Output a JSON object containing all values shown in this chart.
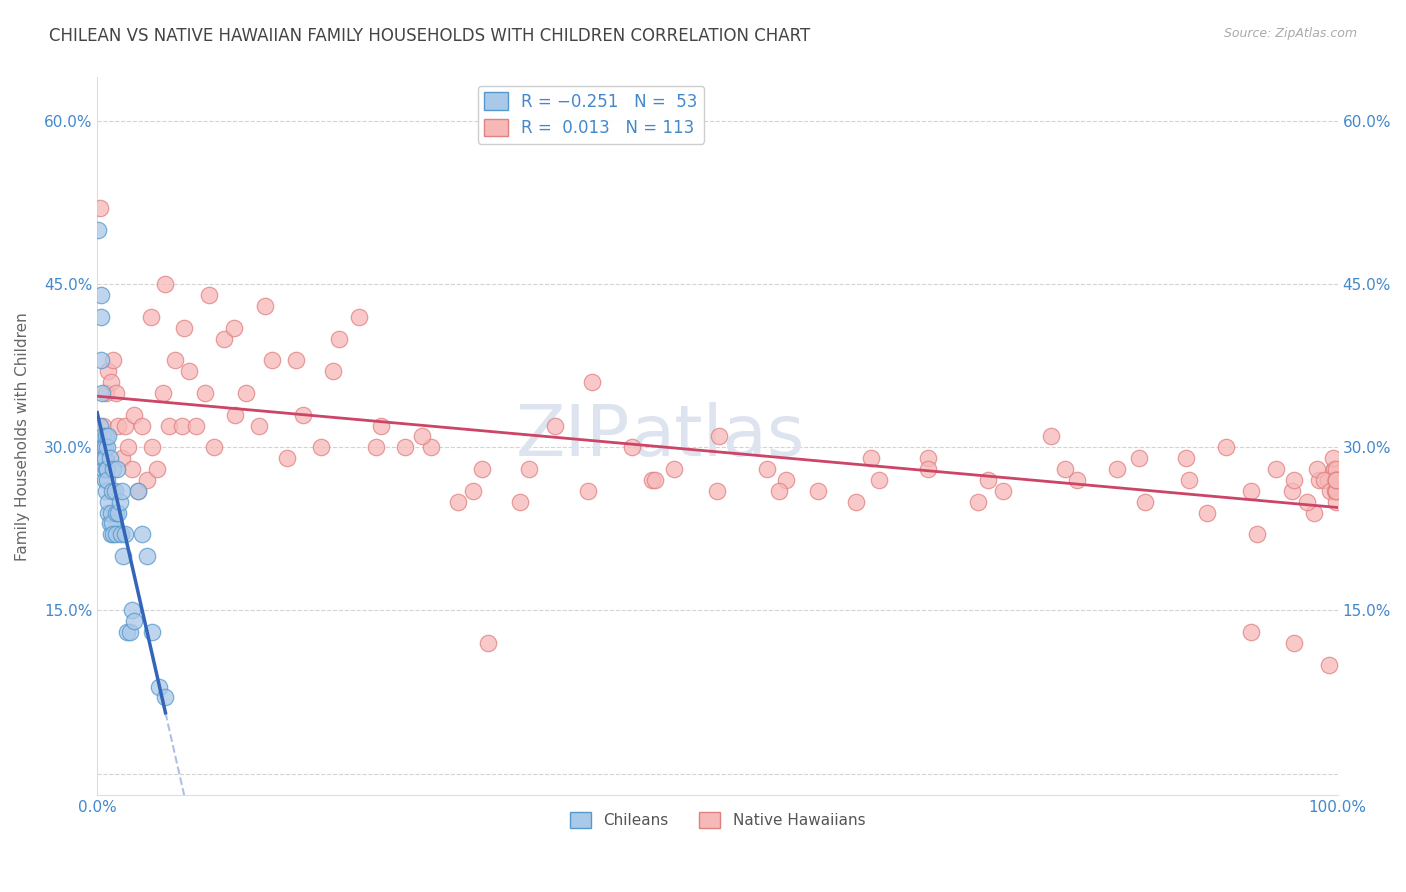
{
  "title": "CHILEAN VS NATIVE HAWAIIAN FAMILY HOUSEHOLDS WITH CHILDREN CORRELATION CHART",
  "source": "Source: ZipAtlas.com",
  "ylabel": "Family Households with Children",
  "xlim": [
    0.0,
    1.0
  ],
  "ylim": [
    -0.02,
    0.64
  ],
  "xticks": [
    0.0,
    0.1,
    0.2,
    0.3,
    0.4,
    0.5,
    0.6,
    0.7,
    0.8,
    0.9,
    1.0
  ],
  "yticks": [
    0.0,
    0.15,
    0.3,
    0.45,
    0.6
  ],
  "chilean_face": "#aac8e8",
  "chilean_edge": "#5599cc",
  "hawaiian_face": "#f7b8b8",
  "hawaiian_edge": "#e08080",
  "trend_chilean_color": "#3366bb",
  "trend_hawaiian_color": "#cc4466",
  "axis_label_color": "#4488cc",
  "grid_color": "#c8c8c8",
  "title_color": "#444444",
  "background_color": "#ffffff",
  "watermark_color": "#dde4f0",
  "chilean_R": -0.251,
  "chilean_N": 53,
  "hawaiian_R": 0.013,
  "hawaiian_N": 113,
  "chileans_x": [
    0.001,
    0.002,
    0.002,
    0.003,
    0.003,
    0.003,
    0.004,
    0.004,
    0.004,
    0.005,
    0.005,
    0.005,
    0.005,
    0.006,
    0.006,
    0.006,
    0.007,
    0.007,
    0.007,
    0.008,
    0.008,
    0.008,
    0.009,
    0.009,
    0.009,
    0.01,
    0.01,
    0.011,
    0.011,
    0.012,
    0.012,
    0.013,
    0.013,
    0.014,
    0.015,
    0.015,
    0.016,
    0.017,
    0.018,
    0.019,
    0.02,
    0.021,
    0.022,
    0.024,
    0.026,
    0.028,
    0.03,
    0.033,
    0.036,
    0.04,
    0.044,
    0.05,
    0.055
  ],
  "chileans_y": [
    0.5,
    0.32,
    0.3,
    0.42,
    0.38,
    0.44,
    0.35,
    0.3,
    0.3,
    0.28,
    0.31,
    0.3,
    0.29,
    0.3,
    0.29,
    0.27,
    0.31,
    0.28,
    0.26,
    0.3,
    0.28,
    0.27,
    0.24,
    0.25,
    0.31,
    0.23,
    0.29,
    0.24,
    0.22,
    0.26,
    0.23,
    0.22,
    0.28,
    0.26,
    0.24,
    0.22,
    0.28,
    0.24,
    0.25,
    0.22,
    0.26,
    0.2,
    0.22,
    0.13,
    0.13,
    0.15,
    0.14,
    0.26,
    0.22,
    0.2,
    0.13,
    0.08,
    0.07
  ],
  "hawaiians_x": [
    0.002,
    0.005,
    0.007,
    0.009,
    0.011,
    0.013,
    0.015,
    0.017,
    0.02,
    0.022,
    0.025,
    0.028,
    0.03,
    0.033,
    0.036,
    0.04,
    0.044,
    0.048,
    0.053,
    0.058,
    0.063,
    0.068,
    0.074,
    0.08,
    0.087,
    0.094,
    0.102,
    0.111,
    0.12,
    0.13,
    0.141,
    0.153,
    0.166,
    0.18,
    0.195,
    0.211,
    0.229,
    0.248,
    0.269,
    0.291,
    0.315,
    0.341,
    0.369,
    0.399,
    0.431,
    0.465,
    0.501,
    0.54,
    0.581,
    0.624,
    0.67,
    0.718,
    0.769,
    0.822,
    0.878,
    0.93,
    0.965,
    0.985,
    0.993,
    0.997,
    0.043,
    0.055,
    0.07,
    0.09,
    0.11,
    0.135,
    0.16,
    0.19,
    0.225,
    0.262,
    0.303,
    0.348,
    0.396,
    0.447,
    0.5,
    0.555,
    0.612,
    0.67,
    0.73,
    0.79,
    0.845,
    0.895,
    0.935,
    0.963,
    0.981,
    0.992,
    0.997,
    0.31,
    0.45,
    0.55,
    0.63,
    0.71,
    0.78,
    0.84,
    0.88,
    0.91,
    0.93,
    0.95,
    0.965,
    0.975,
    0.983,
    0.989,
    0.994,
    0.996,
    0.998,
    0.999,
    0.999,
    0.999,
    0.999,
    0.999,
    0.999,
    0.999,
    0.999
  ],
  "hawaiians_y": [
    0.52,
    0.32,
    0.35,
    0.37,
    0.36,
    0.38,
    0.35,
    0.32,
    0.29,
    0.32,
    0.3,
    0.28,
    0.33,
    0.26,
    0.32,
    0.27,
    0.3,
    0.28,
    0.35,
    0.32,
    0.38,
    0.32,
    0.37,
    0.32,
    0.35,
    0.3,
    0.4,
    0.33,
    0.35,
    0.32,
    0.38,
    0.29,
    0.33,
    0.3,
    0.4,
    0.42,
    0.32,
    0.3,
    0.3,
    0.25,
    0.12,
    0.25,
    0.32,
    0.36,
    0.3,
    0.28,
    0.31,
    0.28,
    0.26,
    0.29,
    0.29,
    0.27,
    0.31,
    0.28,
    0.29,
    0.13,
    0.12,
    0.27,
    0.1,
    0.28,
    0.42,
    0.45,
    0.41,
    0.44,
    0.41,
    0.43,
    0.38,
    0.37,
    0.3,
    0.31,
    0.26,
    0.28,
    0.26,
    0.27,
    0.26,
    0.27,
    0.25,
    0.28,
    0.26,
    0.27,
    0.25,
    0.24,
    0.22,
    0.26,
    0.24,
    0.27,
    0.28,
    0.28,
    0.27,
    0.26,
    0.27,
    0.25,
    0.28,
    0.29,
    0.27,
    0.3,
    0.26,
    0.28,
    0.27,
    0.25,
    0.28,
    0.27,
    0.26,
    0.29,
    0.26,
    0.25,
    0.27,
    0.26,
    0.28,
    0.27,
    0.26,
    0.27,
    0.27
  ]
}
